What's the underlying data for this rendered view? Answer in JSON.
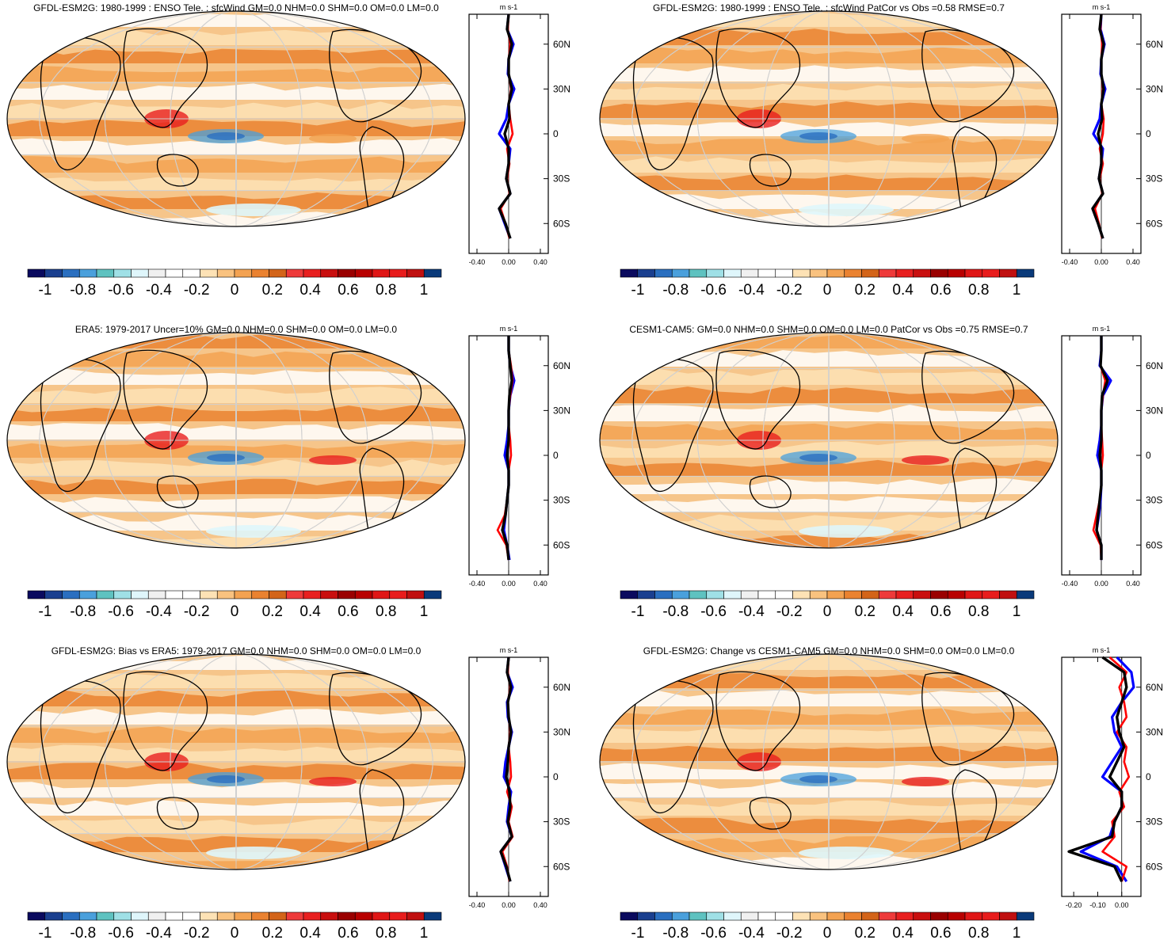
{
  "colorbar": {
    "colors": [
      "#0a0a5e",
      "#1a3f8f",
      "#2a6fc0",
      "#4aa0dc",
      "#5ec2c0",
      "#9fe0e6",
      "#dff6fb",
      "#f0f0f0",
      "#ffffff",
      "#ffffff",
      "#fde2b5",
      "#f9c27f",
      "#f3a251",
      "#ea8230",
      "#d36419",
      "#ee3a3a",
      "#e81f1f",
      "#c90f0f",
      "#9a0000",
      "#b80000",
      "#e01616",
      "#e81c1c",
      "#c01010",
      "#0a3a7a"
    ],
    "labels": [
      "-1",
      "-0.8",
      "-0.6",
      "-0.4",
      "-0.2",
      "0",
      "0.2",
      "0.4",
      "0.6",
      "0.8",
      "1"
    ]
  },
  "profile_colors": {
    "model": "#0000ff",
    "obs": "#ff0000",
    "mean": "#000000"
  },
  "chart_data": [
    {
      "type": "heatmap",
      "title": "GFDL-ESM2G: 1980-1999 : ENSO Tele. : sfcWind GM=0.0 NHM=0.0 SHM=0.0 OM=0.0 LM=0.0",
      "map": {
        "projection": "Robinson",
        "central_longitude": 180,
        "field": "sfcWind ENSO teleconnection",
        "levels": [
          -1,
          1
        ]
      },
      "profile": {
        "unit": "m s-1",
        "xlim": [
          -0.5,
          0.5
        ],
        "xticks": [
          "-0.40",
          "0.00",
          "0.40"
        ],
        "yticks": [
          "60N",
          "30N",
          "0",
          "30S",
          "60S"
        ],
        "lat": [
          80,
          70,
          60,
          50,
          40,
          30,
          20,
          10,
          0,
          -10,
          -20,
          -30,
          -40,
          -50,
          -60,
          -70
        ],
        "series": [
          {
            "values": [
              0.0,
              -0.02,
              0.06,
              0.0,
              -0.01,
              0.07,
              0.0,
              -0.03,
              -0.12,
              0.02,
              0.0,
              -0.03,
              0.02,
              -0.12,
              -0.05,
              0.02
            ]
          },
          {
            "values": [
              0.0,
              -0.01,
              0.02,
              0.0,
              0.0,
              0.03,
              0.0,
              0.02,
              0.05,
              -0.02,
              0.01,
              -0.02,
              0.01,
              -0.1,
              -0.04,
              0.01
            ]
          },
          {
            "values": [
              0.0,
              -0.02,
              0.04,
              0.0,
              0.0,
              0.04,
              0.0,
              0.01,
              -0.05,
              0.0,
              0.0,
              -0.03,
              0.02,
              -0.12,
              -0.04,
              0.02
            ]
          }
        ]
      }
    },
    {
      "type": "heatmap",
      "title": "GFDL-ESM2G: 1980-1999 : ENSO Tele. : sfcWind PatCor vs Obs =0.58 RMSE=0.7",
      "map": {
        "projection": "Robinson",
        "central_longitude": 180,
        "field": "sfcWind ENSO teleconnection",
        "levels": [
          -1,
          1
        ]
      },
      "profile": {
        "unit": "m s-1",
        "xlim": [
          -0.5,
          0.5
        ],
        "xticks": [
          "-0.40",
          "0.00",
          "0.40"
        ],
        "yticks": [
          "60N",
          "30N",
          "0",
          "30S",
          "60S"
        ],
        "lat": [
          80,
          70,
          60,
          50,
          40,
          30,
          20,
          10,
          0,
          -10,
          -20,
          -30,
          -40,
          -50,
          -60,
          -70
        ],
        "series": [
          {
            "values": [
              0.0,
              -0.01,
              0.04,
              0.0,
              -0.01,
              0.05,
              0.0,
              -0.02,
              -0.1,
              0.02,
              0.0,
              -0.03,
              0.02,
              -0.11,
              -0.04,
              0.02
            ]
          },
          {
            "values": [
              0.0,
              -0.01,
              0.01,
              0.0,
              0.0,
              0.02,
              0.0,
              0.03,
              0.02,
              -0.02,
              0.02,
              -0.02,
              0.01,
              -0.08,
              -0.03,
              0.01
            ]
          },
          {
            "values": [
              0.0,
              -0.02,
              0.03,
              0.0,
              0.0,
              0.03,
              0.0,
              0.01,
              -0.04,
              0.0,
              0.0,
              -0.03,
              0.02,
              -0.11,
              -0.04,
              0.02
            ]
          }
        ]
      }
    },
    {
      "type": "heatmap",
      "title": "ERA5: 1979-2017 Uncer=10% GM=0.0 NHM=0.0 SHM=0.0 OM=0.0 LM=0.0",
      "map": {
        "projection": "Robinson",
        "central_longitude": 180,
        "field": "sfcWind ENSO teleconnection",
        "levels": [
          -1,
          1
        ]
      },
      "profile": {
        "unit": "m s-1",
        "xlim": [
          -0.5,
          0.5
        ],
        "xticks": [
          "-0.40",
          "0.00",
          "0.40"
        ],
        "yticks": [
          "60N",
          "30N",
          "0",
          "30S",
          "60S"
        ],
        "lat": [
          80,
          70,
          60,
          50,
          40,
          30,
          20,
          10,
          0,
          -10,
          -20,
          -30,
          -40,
          -50,
          -60,
          -70
        ],
        "series": [
          {
            "values": [
              0.0,
              0.0,
              0.02,
              0.07,
              0.02,
              0.0,
              0.0,
              -0.02,
              -0.05,
              0.0,
              0.0,
              -0.02,
              -0.04,
              -0.06,
              -0.02,
              0.01
            ]
          },
          {
            "values": [
              0.0,
              0.0,
              0.03,
              0.05,
              0.02,
              0.0,
              0.0,
              0.02,
              0.03,
              0.0,
              0.0,
              -0.02,
              -0.05,
              -0.14,
              -0.03,
              0.0
            ]
          },
          {
            "values": [
              0.0,
              0.0,
              0.02,
              0.04,
              0.01,
              0.0,
              0.0,
              0.0,
              -0.02,
              0.0,
              0.0,
              -0.02,
              -0.04,
              -0.08,
              -0.02,
              0.0
            ]
          }
        ]
      }
    },
    {
      "type": "heatmap",
      "title": "CESM1-CAM5: GM=0.0 NHM=0.0 SHM=0.0 OM=0.0 LM=0.0 PatCor vs Obs =0.75 RMSE=0.7",
      "map": {
        "projection": "Robinson",
        "central_longitude": 180,
        "field": "sfcWind ENSO teleconnection",
        "levels": [
          -1,
          1
        ]
      },
      "profile": {
        "unit": "m s-1",
        "xlim": [
          -0.5,
          0.5
        ],
        "xticks": [
          "-0.40",
          "0.00",
          "0.40"
        ],
        "yticks": [
          "60N",
          "30N",
          "0",
          "30S",
          "60S"
        ],
        "lat": [
          80,
          70,
          60,
          50,
          40,
          30,
          20,
          10,
          0,
          -10,
          -20,
          -30,
          -40,
          -50,
          -60,
          -70
        ],
        "series": [
          {
            "values": [
              0.0,
              0.0,
              -0.02,
              0.12,
              0.02,
              0.0,
              0.0,
              -0.02,
              -0.05,
              0.0,
              0.0,
              -0.01,
              -0.03,
              -0.06,
              0.0,
              0.0
            ]
          },
          {
            "values": [
              0.0,
              0.0,
              -0.01,
              0.05,
              0.02,
              0.0,
              0.0,
              0.01,
              0.02,
              0.0,
              0.0,
              -0.02,
              -0.06,
              -0.1,
              -0.01,
              0.0
            ]
          },
          {
            "values": [
              0.0,
              0.0,
              -0.01,
              0.08,
              0.01,
              0.0,
              0.0,
              0.0,
              -0.02,
              0.0,
              0.0,
              -0.02,
              -0.04,
              -0.06,
              0.0,
              0.0
            ]
          }
        ]
      }
    },
    {
      "type": "heatmap",
      "title": "GFDL-ESM2G: Bias vs ERA5: 1979-2017 GM=0.0 NHM=0.0 SHM=0.0 OM=0.0 LM=0.0",
      "map": {
        "projection": "Robinson",
        "central_longitude": 180,
        "field": "sfcWind ENSO teleconnection bias",
        "levels": [
          -1,
          1
        ]
      },
      "profile": {
        "unit": "m s-1",
        "xlim": [
          -0.5,
          0.5
        ],
        "xticks": [
          "-0.40",
          "0.00",
          "0.40"
        ],
        "yticks": [
          "60N",
          "30N",
          "0",
          "30S",
          "60S"
        ],
        "lat": [
          80,
          70,
          60,
          50,
          40,
          30,
          20,
          10,
          0,
          -10,
          -20,
          -30,
          -40,
          -50,
          -60,
          -70
        ],
        "series": [
          {
            "values": [
              0.0,
              -0.02,
              0.05,
              -0.02,
              -0.01,
              0.04,
              0.0,
              -0.04,
              -0.06,
              0.03,
              0.0,
              -0.02,
              0.04,
              -0.1,
              -0.04,
              0.02
            ]
          },
          {
            "values": [
              0.0,
              -0.01,
              0.02,
              -0.01,
              0.0,
              0.02,
              0.0,
              0.02,
              0.03,
              -0.02,
              0.04,
              0.0,
              0.05,
              -0.08,
              -0.02,
              0.01
            ]
          },
          {
            "values": [
              0.0,
              -0.02,
              0.03,
              -0.01,
              0.0,
              0.03,
              0.0,
              -0.01,
              -0.03,
              0.01,
              0.02,
              -0.01,
              0.04,
              -0.1,
              -0.03,
              0.02
            ]
          }
        ]
      }
    },
    {
      "type": "heatmap",
      "title": "GFDL-ESM2G: Change vs CESM1-CAM5 GM=0.0 NHM=0.0 SHM=0.0 OM=0.0 LM=0.0",
      "map": {
        "projection": "Robinson",
        "central_longitude": 180,
        "field": "sfcWind ENSO teleconnection change",
        "levels": [
          -1,
          1
        ]
      },
      "profile": {
        "unit": "m s-1",
        "xlim": [
          -0.25,
          0.08
        ],
        "xticks": [
          "-0.20",
          "-0.10",
          "0.00"
        ],
        "yticks": [
          "60N",
          "30N",
          "0",
          "30S",
          "60S"
        ],
        "lat": [
          80,
          70,
          60,
          50,
          40,
          30,
          20,
          10,
          0,
          -10,
          -20,
          -30,
          -40,
          -50,
          -60,
          -70
        ],
        "series": [
          {
            "values": [
              -0.02,
              0.04,
              0.05,
              0.0,
              -0.04,
              -0.03,
              0.0,
              -0.04,
              -0.08,
              0.0,
              0.0,
              -0.03,
              -0.05,
              -0.17,
              -0.02,
              0.02
            ]
          },
          {
            "values": [
              -0.05,
              0.02,
              -0.01,
              0.01,
              0.02,
              -0.02,
              0.02,
              0.01,
              0.03,
              -0.01,
              0.01,
              -0.04,
              -0.03,
              -0.08,
              0.02,
              0.0
            ]
          },
          {
            "values": [
              -0.08,
              0.01,
              0.02,
              0.0,
              -0.02,
              -0.01,
              0.01,
              -0.02,
              -0.05,
              0.0,
              0.0,
              -0.03,
              -0.04,
              -0.22,
              -0.03,
              0.0
            ]
          }
        ]
      }
    }
  ]
}
